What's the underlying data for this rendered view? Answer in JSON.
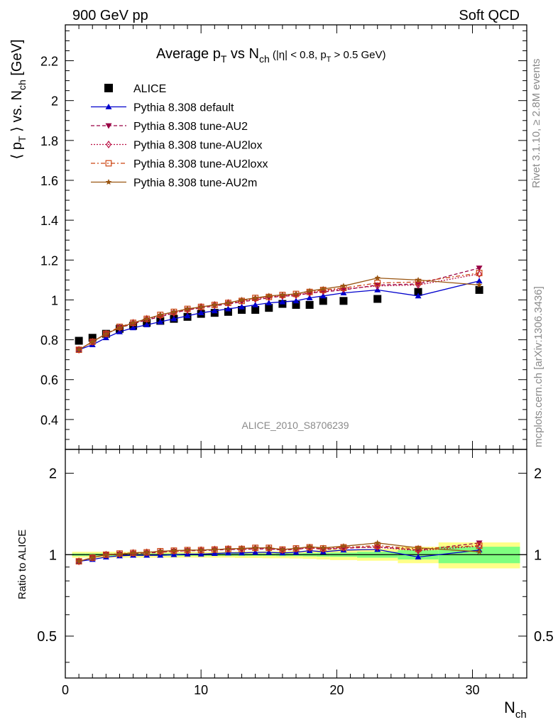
{
  "header": {
    "left": "900 GeV pp",
    "right": "Soft QCD"
  },
  "side_text": {
    "rivet": "Rivet 3.1.10, ≥ 2.8M events",
    "mcplots": "mcplots.cern.ch [arXiv:1306.3436]"
  },
  "watermark": "ALICE_2010_S8706239",
  "title": {
    "main": "Average p",
    "sub1": "T",
    "mid": " vs N",
    "sub2": "ch",
    "cut": " (|η| < 0.8, p",
    "sub3": "T",
    "cut_end": " > 0.5 GeV)"
  },
  "ylabel": {
    "pre": "⟨ p",
    "sub1": "T",
    "mid": " ⟩ vs. N",
    "sub2": "ch",
    "unit": " [GeV]"
  },
  "xlabel": {
    "main": "N",
    "sub": "ch"
  },
  "ratio_ylabel": "Ratio to ALICE",
  "chart_data": [
    {
      "type": "scatter",
      "panel": "main",
      "xlim": [
        0,
        34
      ],
      "ylim": [
        0.25,
        2.38
      ],
      "yticks": [
        "0.4",
        "0.6",
        "0.8",
        "1",
        "1.2",
        "1.4",
        "1.6",
        "1.8",
        "2",
        "2.2"
      ],
      "xticks": [
        "0",
        "10",
        "20",
        "30"
      ],
      "legend_position": "top-left",
      "series": [
        {
          "name": "ALICE",
          "color": "#000000",
          "marker": "square",
          "line": "none",
          "x": [
            1,
            2,
            3,
            4,
            5,
            6,
            7,
            8,
            9,
            10,
            11,
            12,
            13,
            14,
            15,
            16,
            17,
            18,
            19,
            20.5,
            23,
            26,
            30.5
          ],
          "y": [
            0.795,
            0.81,
            0.83,
            0.855,
            0.87,
            0.885,
            0.895,
            0.905,
            0.915,
            0.93,
            0.935,
            0.94,
            0.95,
            0.95,
            0.96,
            0.98,
            0.975,
            0.975,
            0.995,
            0.995,
            1.005,
            1.04,
            1.05
          ]
        },
        {
          "name": "Pythia 8.308 default",
          "color": "#0000cc",
          "marker": "triangle-up",
          "line": "solid",
          "x": [
            1,
            2,
            3,
            4,
            5,
            6,
            7,
            8,
            9,
            10,
            11,
            12,
            13,
            14,
            15,
            16,
            17,
            18,
            19,
            20.5,
            23,
            26,
            30.5
          ],
          "y": [
            0.75,
            0.775,
            0.81,
            0.84,
            0.86,
            0.875,
            0.89,
            0.905,
            0.92,
            0.935,
            0.945,
            0.955,
            0.965,
            0.975,
            0.985,
            0.99,
            0.995,
            1.01,
            1.02,
            1.035,
            1.05,
            1.02,
            1.095
          ]
        },
        {
          "name": "Pythia 8.308 tune-AU2",
          "color": "#990044",
          "marker": "triangle-down",
          "line": "dashed",
          "x": [
            1,
            2,
            3,
            4,
            5,
            6,
            7,
            8,
            9,
            10,
            11,
            12,
            13,
            14,
            15,
            16,
            17,
            18,
            19,
            20.5,
            23,
            26,
            30.5
          ],
          "y": [
            0.75,
            0.79,
            0.83,
            0.86,
            0.88,
            0.9,
            0.915,
            0.935,
            0.95,
            0.96,
            0.97,
            0.98,
            0.99,
            1.0,
            1.01,
            1.02,
            1.02,
            1.035,
            1.04,
            1.05,
            1.075,
            1.08,
            1.16
          ]
        },
        {
          "name": "Pythia 8.308 tune-AU2lox",
          "color": "#bb1144",
          "marker": "diamond-open",
          "line": "dotted",
          "x": [
            1,
            2,
            3,
            4,
            5,
            6,
            7,
            8,
            9,
            10,
            11,
            12,
            13,
            14,
            15,
            16,
            17,
            18,
            19,
            20.5,
            23,
            26,
            30.5
          ],
          "y": [
            0.75,
            0.79,
            0.83,
            0.86,
            0.885,
            0.905,
            0.92,
            0.935,
            0.95,
            0.965,
            0.975,
            0.985,
            0.995,
            1.005,
            1.015,
            1.02,
            1.025,
            1.035,
            1.045,
            1.055,
            1.07,
            1.075,
            1.13
          ]
        },
        {
          "name": "Pythia 8.308 tune-AU2loxx",
          "color": "#cc4411",
          "marker": "square-open",
          "line": "dashdot",
          "x": [
            1,
            2,
            3,
            4,
            5,
            6,
            7,
            8,
            9,
            10,
            11,
            12,
            13,
            14,
            15,
            16,
            17,
            18,
            19,
            20.5,
            23,
            26,
            30.5
          ],
          "y": [
            0.75,
            0.79,
            0.83,
            0.865,
            0.885,
            0.905,
            0.925,
            0.94,
            0.955,
            0.965,
            0.975,
            0.985,
            0.995,
            1.01,
            1.015,
            1.025,
            1.03,
            1.04,
            1.05,
            1.06,
            1.085,
            1.09,
            1.135
          ]
        },
        {
          "name": "Pythia 8.308 tune-AU2m",
          "color": "#995511",
          "marker": "star",
          "line": "solid",
          "x": [
            1,
            2,
            3,
            4,
            5,
            6,
            7,
            8,
            9,
            10,
            11,
            12,
            13,
            14,
            15,
            16,
            17,
            18,
            19,
            20.5,
            23,
            26,
            30.5
          ],
          "y": [
            0.75,
            0.79,
            0.83,
            0.86,
            0.885,
            0.905,
            0.925,
            0.94,
            0.955,
            0.965,
            0.975,
            0.985,
            1.0,
            1.01,
            1.02,
            1.025,
            1.03,
            1.045,
            1.055,
            1.07,
            1.11,
            1.1,
            1.075
          ]
        }
      ]
    },
    {
      "type": "scatter",
      "panel": "ratio",
      "xlim": [
        0,
        34
      ],
      "ylim": [
        0.35,
        2.45
      ],
      "log_y": true,
      "yticks": [
        "0.5",
        "1",
        "2"
      ],
      "xticks": [
        "0",
        "10",
        "20",
        "30"
      ],
      "reference_bands": {
        "bins": [
          [
            0.5,
            1.5
          ],
          [
            1.5,
            2.5
          ],
          [
            2.5,
            3.5
          ],
          [
            3.5,
            4.5
          ],
          [
            4.5,
            5.5
          ],
          [
            5.5,
            6.5
          ],
          [
            6.5,
            7.5
          ],
          [
            7.5,
            8.5
          ],
          [
            8.5,
            9.5
          ],
          [
            9.5,
            10.5
          ],
          [
            10.5,
            11.5
          ],
          [
            11.5,
            12.5
          ],
          [
            12.5,
            13.5
          ],
          [
            13.5,
            14.5
          ],
          [
            14.5,
            15.5
          ],
          [
            15.5,
            16.5
          ],
          [
            16.5,
            17.5
          ],
          [
            17.5,
            18.5
          ],
          [
            18.5,
            19.5
          ],
          [
            19.5,
            21.5
          ],
          [
            21.5,
            24.5
          ],
          [
            24.5,
            27.5
          ],
          [
            27.5,
            33.5
          ]
        ],
        "stat_halfwidth": [
          0.01,
          0.01,
          0.01,
          0.01,
          0.01,
          0.01,
          0.01,
          0.01,
          0.01,
          0.01,
          0.01,
          0.01,
          0.01,
          0.01,
          0.01,
          0.012,
          0.012,
          0.014,
          0.016,
          0.018,
          0.025,
          0.04,
          0.07
        ],
        "total_halfwidth": [
          0.025,
          0.025,
          0.025,
          0.025,
          0.025,
          0.025,
          0.025,
          0.025,
          0.025,
          0.025,
          0.025,
          0.025,
          0.028,
          0.028,
          0.03,
          0.03,
          0.032,
          0.035,
          0.04,
          0.045,
          0.05,
          0.07,
          0.11
        ],
        "stat_color": "#7fff7f",
        "total_color": "#ffff88"
      },
      "series": [
        {
          "name": "Pythia 8.308 default",
          "color": "#0000cc",
          "marker": "triangle-up",
          "line": "solid",
          "x": [
            1,
            2,
            3,
            4,
            5,
            6,
            7,
            8,
            9,
            10,
            11,
            12,
            13,
            14,
            15,
            16,
            17,
            18,
            19,
            20.5,
            23,
            26,
            30.5
          ],
          "y": [
            0.945,
            0.96,
            0.98,
            0.99,
            0.995,
            0.995,
            0.995,
            1.0,
            1.005,
            1.005,
            1.01,
            1.015,
            1.015,
            1.02,
            1.02,
            1.015,
            1.02,
            1.035,
            1.025,
            1.04,
            1.045,
            0.98,
            1.04
          ]
        },
        {
          "name": "Pythia 8.308 tune-AU2",
          "color": "#990044",
          "marker": "triangle-down",
          "line": "dashed",
          "x": [
            1,
            2,
            3,
            4,
            5,
            6,
            7,
            8,
            9,
            10,
            11,
            12,
            13,
            14,
            15,
            16,
            17,
            18,
            19,
            20.5,
            23,
            26,
            30.5
          ],
          "y": [
            0.945,
            0.975,
            1.0,
            1.005,
            1.01,
            1.015,
            1.02,
            1.03,
            1.035,
            1.035,
            1.04,
            1.045,
            1.045,
            1.05,
            1.05,
            1.04,
            1.045,
            1.06,
            1.045,
            1.055,
            1.07,
            1.04,
            1.105
          ]
        },
        {
          "name": "Pythia 8.308 tune-AU2lox",
          "color": "#bb1144",
          "marker": "diamond-open",
          "line": "dotted",
          "x": [
            1,
            2,
            3,
            4,
            5,
            6,
            7,
            8,
            9,
            10,
            11,
            12,
            13,
            14,
            15,
            16,
            17,
            18,
            19,
            20.5,
            23,
            26,
            30.5
          ],
          "y": [
            0.945,
            0.975,
            1.0,
            1.005,
            1.015,
            1.02,
            1.025,
            1.03,
            1.035,
            1.04,
            1.045,
            1.05,
            1.05,
            1.055,
            1.055,
            1.04,
            1.05,
            1.06,
            1.05,
            1.06,
            1.065,
            1.035,
            1.075
          ]
        },
        {
          "name": "Pythia 8.308 tune-AU2loxx",
          "color": "#cc4411",
          "marker": "square-open",
          "line": "dashdot",
          "x": [
            1,
            2,
            3,
            4,
            5,
            6,
            7,
            8,
            9,
            10,
            11,
            12,
            13,
            14,
            15,
            16,
            17,
            18,
            19,
            20.5,
            23,
            26,
            30.5
          ],
          "y": [
            0.945,
            0.975,
            1.0,
            1.01,
            1.015,
            1.02,
            1.03,
            1.035,
            1.04,
            1.04,
            1.045,
            1.05,
            1.05,
            1.06,
            1.06,
            1.045,
            1.055,
            1.065,
            1.055,
            1.065,
            1.08,
            1.05,
            1.08
          ]
        },
        {
          "name": "Pythia 8.308 tune-AU2m",
          "color": "#995511",
          "marker": "star",
          "line": "solid",
          "x": [
            1,
            2,
            3,
            4,
            5,
            6,
            7,
            8,
            9,
            10,
            11,
            12,
            13,
            14,
            15,
            16,
            17,
            18,
            19,
            20.5,
            23,
            26,
            30.5
          ],
          "y": [
            0.945,
            0.975,
            1.0,
            1.005,
            1.015,
            1.02,
            1.03,
            1.035,
            1.04,
            1.04,
            1.045,
            1.05,
            1.055,
            1.06,
            1.06,
            1.045,
            1.055,
            1.07,
            1.06,
            1.075,
            1.105,
            1.06,
            1.025
          ]
        }
      ]
    }
  ]
}
